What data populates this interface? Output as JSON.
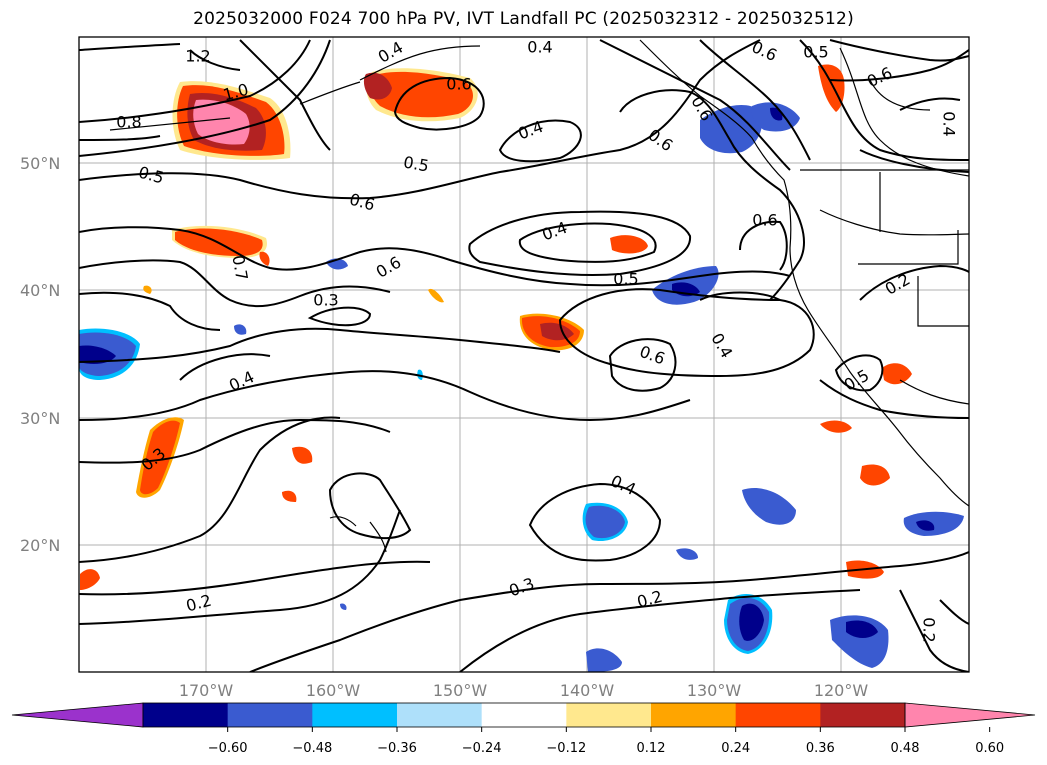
{
  "title": "2025032000 F024 700 hPa PV, IVT Landfall PC (2025032312 - 2025032512)",
  "latitude_labels": [
    "50°N",
    "40°N",
    "30°N",
    "20°N"
  ],
  "longitude_labels": [
    "170°W",
    "160°W",
    "150°W",
    "140°W",
    "130°W",
    "120°W"
  ],
  "contour_labels": [
    "1.2",
    "1.0",
    "0.8",
    "0.4",
    "0.6",
    "0.4",
    "0.5",
    "0.6",
    "0.4",
    "0.6",
    "0.5",
    "0.6",
    "0.4",
    "0.5",
    "0.6",
    "0.6",
    "0.7",
    "0.6",
    "0.4",
    "0.6",
    "0.5",
    "0.3",
    "0.2",
    "0.4",
    "0.6",
    "0.4",
    "0.5",
    "0.3",
    "0.4",
    "0.3",
    "0.2",
    "0.2",
    "0.2"
  ],
  "colorbar": {
    "ticks": [
      "−0.60",
      "−0.48",
      "−0.36",
      "−0.24",
      "−0.12",
      "0.12",
      "0.24",
      "0.36",
      "0.48",
      "0.60"
    ],
    "colors": [
      "#9b32cc",
      "#00008b",
      "#3a5bd0",
      "#00bfff",
      "#aee0fa",
      "#ffffff",
      "#ffe88e",
      "#ffa500",
      "#ff4500",
      "#b22222",
      "#ff85ad"
    ]
  },
  "fill_colors": {
    "neg_lvl1": "#aee0fa",
    "neg_lvl2": "#00bfff",
    "neg_lvl3": "#3a5bd0",
    "neg_lvl4": "#00008b",
    "pos_lvl1": "#ffe88e",
    "pos_lvl2": "#ffa500",
    "pos_lvl3": "#ff4500",
    "pos_lvl4": "#b22222",
    "pos_lvl5": "#ff85ad"
  }
}
